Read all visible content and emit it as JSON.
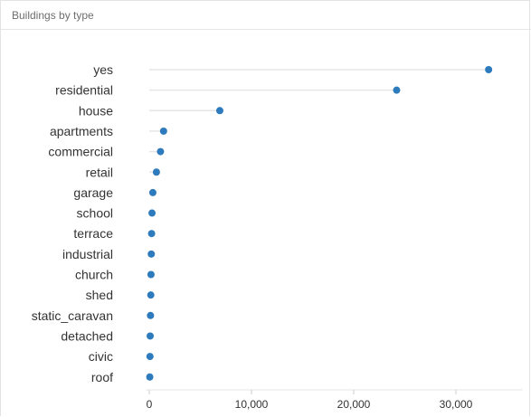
{
  "panel": {
    "title": "Buildings by type"
  },
  "chart_data": {
    "type": "scatter",
    "title": "",
    "xlabel": "",
    "ylabel": "",
    "categories": [
      "yes",
      "residential",
      "house",
      "apartments",
      "commercial",
      "retail",
      "garage",
      "school",
      "terrace",
      "industrial",
      "church",
      "shed",
      "static_caravan",
      "detached",
      "civic",
      "roof"
    ],
    "values": [
      33200,
      24200,
      6900,
      1400,
      1100,
      700,
      350,
      270,
      230,
      200,
      170,
      150,
      120,
      90,
      70,
      50
    ],
    "xlim": [
      0,
      36500
    ],
    "xticks": [
      0,
      10000,
      20000,
      30000
    ],
    "xtick_labels": [
      "0",
      "10,000",
      "20,000",
      "30,000"
    ],
    "grid": false,
    "colors": {
      "point": "#2d7bbd",
      "stem": "#e6e6e6",
      "axis": "#e6e6e6"
    }
  }
}
